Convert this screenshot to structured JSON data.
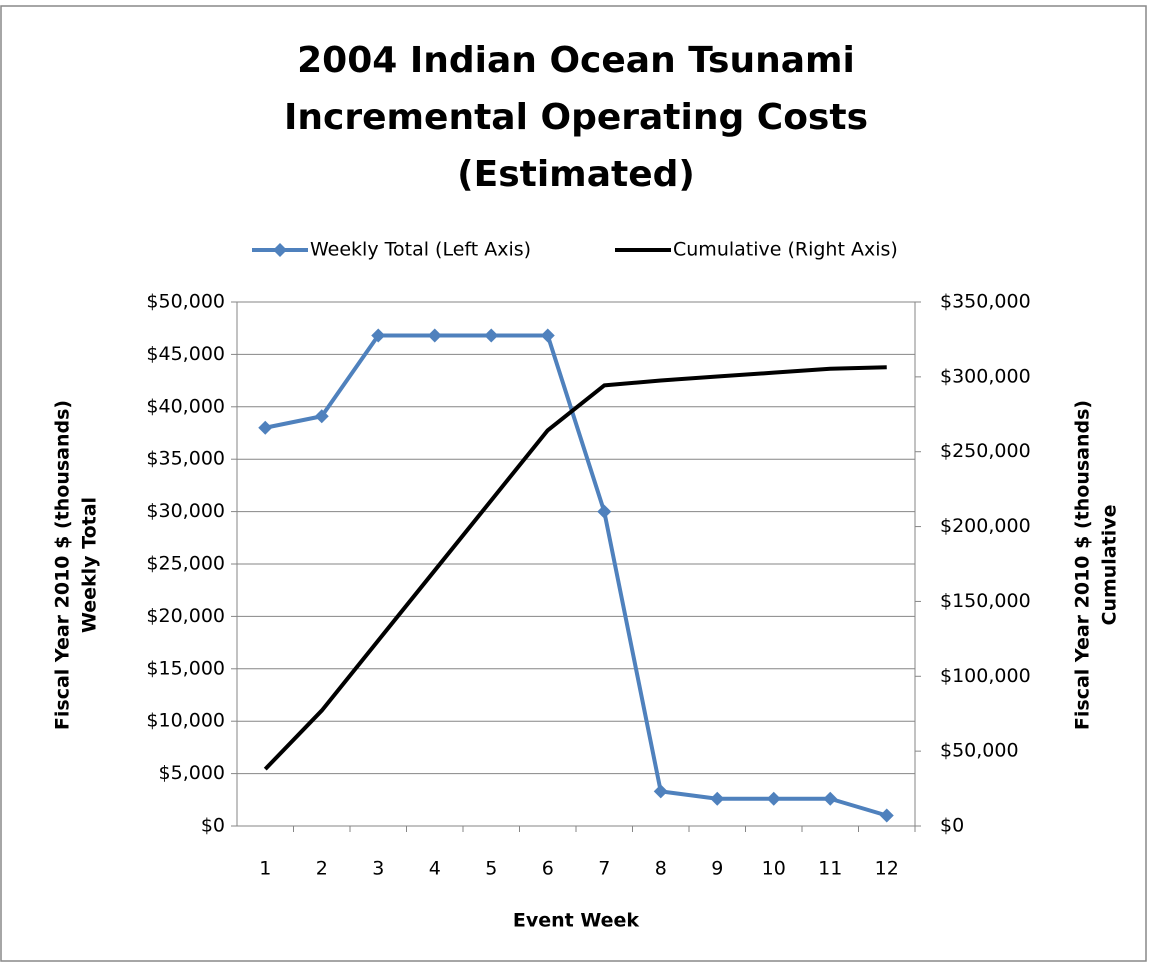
{
  "chart_data": {
    "type": "line",
    "title": [
      "2004 Indian Ocean Tsunami",
      "Incremental Operating Costs",
      "(Estimated)"
    ],
    "x_label": "Event Week",
    "y_label": [
      "Fiscal Year 2010 $ (thousands)",
      "Weekly Total"
    ],
    "y2_label": [
      "Fiscal Year 2010 $ (thousands)",
      "Cumulative"
    ],
    "categories": [
      "1",
      "2",
      "3",
      "4",
      "5",
      "6",
      "7",
      "8",
      "9",
      "10",
      "11",
      "12"
    ],
    "series": [
      {
        "name": "Weekly Total (Left Axis)",
        "color": "#4f81bd",
        "marker": "diamond",
        "values": [
          38000,
          39100,
          46800,
          46800,
          46800,
          46800,
          30000,
          3300,
          2600,
          2600,
          2600,
          1000
        ]
      },
      {
        "name": "Cumulative (Right Axis)",
        "color": "#000000",
        "axis": "y2",
        "values": [
          38000,
          77100,
          123900,
          170700,
          217500,
          264300,
          294300,
          297600,
          300200,
          302800,
          305400,
          306400
        ]
      }
    ],
    "ylim": [
      0,
      50000
    ],
    "yticks": [
      {
        "value": 0,
        "label": "$0"
      },
      {
        "value": 5000,
        "label": "$5,000"
      },
      {
        "value": 10000,
        "label": "$10,000"
      },
      {
        "value": 15000,
        "label": "$15,000"
      },
      {
        "value": 20000,
        "label": "$20,000"
      },
      {
        "value": 25000,
        "label": "$25,000"
      },
      {
        "value": 30000,
        "label": "$30,000"
      },
      {
        "value": 35000,
        "label": "$35,000"
      },
      {
        "value": 40000,
        "label": "$40,000"
      },
      {
        "value": 45000,
        "label": "$45,000"
      },
      {
        "value": 50000,
        "label": "$50,000"
      }
    ],
    "y2lim": [
      0,
      350000
    ],
    "y2ticks": [
      {
        "value": 0,
        "label": "$0"
      },
      {
        "value": 50000,
        "label": "$50,000"
      },
      {
        "value": 100000,
        "label": "$100,000"
      },
      {
        "value": 150000,
        "label": "$150,000"
      },
      {
        "value": 200000,
        "label": "$200,000"
      },
      {
        "value": 250000,
        "label": "$250,000"
      },
      {
        "value": 300000,
        "label": "$300,000"
      },
      {
        "value": 350000,
        "label": "$350,000"
      }
    ],
    "grid": true,
    "legend": "top"
  }
}
